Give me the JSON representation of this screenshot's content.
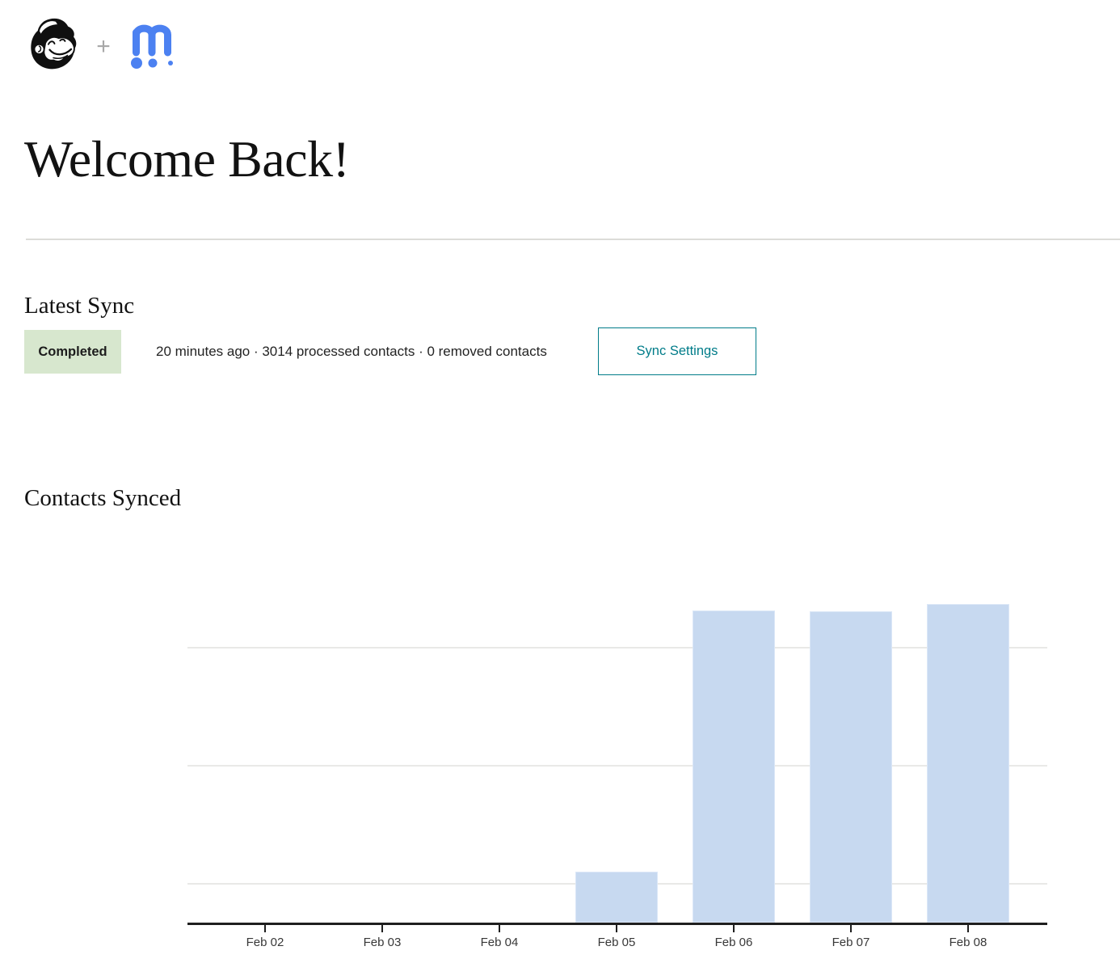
{
  "header": {
    "mailchimp_logo": "mailchimp-freddie-logo",
    "plus_separator": "+",
    "partner_logo": "m-app-logo"
  },
  "page": {
    "title": "Welcome Back!"
  },
  "latest_sync": {
    "heading": "Latest Sync",
    "status": "Completed",
    "summary": "20 minutes ago · 3014 processed contacts · 0 removed contacts",
    "settings_button": "Sync Settings"
  },
  "chart_data": {
    "type": "bar",
    "title": "Contacts Synced",
    "categories": [
      "Feb 02",
      "Feb 03",
      "Feb 04",
      "Feb 05",
      "Feb 06",
      "Feb 07",
      "Feb 08"
    ],
    "values": [
      0,
      0,
      0,
      480,
      2950,
      2945,
      3014
    ],
    "xlabel": "",
    "ylabel": "",
    "ylim": [
      0,
      3800
    ],
    "grid": true,
    "gridline_count": 3,
    "y_tick_labels_visible": false,
    "legend": false,
    "bar_color": "#c7d9f0"
  },
  "colors": {
    "accent_teal": "#007c89",
    "badge_bg": "#d7e7ce",
    "bar_fill": "#c7d9f0",
    "bar_border": "#dbe7f7",
    "logo_blue": "#4c81f1",
    "axis": "#1f1f1f",
    "gridline": "#e9e9e7",
    "divider": "#dcdcd8"
  }
}
